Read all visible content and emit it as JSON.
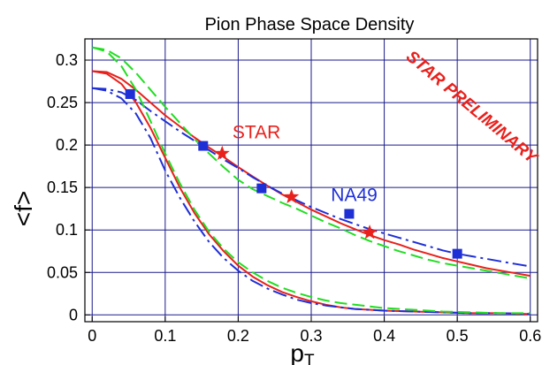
{
  "chart_data": {
    "type": "line",
    "title": "Pion Phase Space Density",
    "xlabel": "p",
    "xlabel_sub": "T",
    "ylabel": "<f>",
    "xlim": [
      -0.01,
      0.61
    ],
    "ylim": [
      -0.008,
      0.325
    ],
    "xticks": [
      0,
      0.1,
      0.2,
      0.3,
      0.4,
      0.5,
      0.6
    ],
    "xtick_labels": [
      "0",
      "0.1",
      "0.2",
      "0.3",
      "0.4",
      "0.5",
      "0.6"
    ],
    "yticks": [
      0,
      0.05,
      0.1,
      0.15,
      0.2,
      0.25,
      0.3
    ],
    "ytick_labels": [
      "0",
      "0.05",
      "0.1",
      "0.15",
      "0.2",
      "0.25",
      "0.3"
    ],
    "grid": true,
    "colors": {
      "red": "#e8211c",
      "blue": "#1f2fd6",
      "green": "#22dd22",
      "grid": "#1a1a8c"
    },
    "series": [
      {
        "color": "red",
        "style": "solid",
        "points": [
          [
            0,
            0.287
          ],
          [
            0.02,
            0.286
          ],
          [
            0.04,
            0.278
          ],
          [
            0.06,
            0.265
          ],
          [
            0.08,
            0.25
          ],
          [
            0.1,
            0.235
          ],
          [
            0.12,
            0.222
          ],
          [
            0.14,
            0.209
          ],
          [
            0.16,
            0.197
          ],
          [
            0.18,
            0.186
          ],
          [
            0.2,
            0.174
          ],
          [
            0.22,
            0.163
          ],
          [
            0.24,
            0.152
          ],
          [
            0.26,
            0.142
          ],
          [
            0.28,
            0.133
          ],
          [
            0.3,
            0.124
          ],
          [
            0.32,
            0.116
          ],
          [
            0.34,
            0.108
          ],
          [
            0.36,
            0.101
          ],
          [
            0.38,
            0.094
          ],
          [
            0.4,
            0.088
          ],
          [
            0.42,
            0.083
          ],
          [
            0.44,
            0.077
          ],
          [
            0.46,
            0.072
          ],
          [
            0.48,
            0.067
          ],
          [
            0.5,
            0.063
          ],
          [
            0.52,
            0.059
          ],
          [
            0.54,
            0.055
          ],
          [
            0.56,
            0.052
          ],
          [
            0.58,
            0.049
          ],
          [
            0.6,
            0.046
          ]
        ]
      },
      {
        "color": "blue",
        "style": "dashdot",
        "points": [
          [
            0,
            0.267
          ],
          [
            0.02,
            0.266
          ],
          [
            0.04,
            0.262
          ],
          [
            0.06,
            0.253
          ],
          [
            0.08,
            0.24
          ],
          [
            0.1,
            0.228
          ],
          [
            0.12,
            0.216
          ],
          [
            0.14,
            0.205
          ],
          [
            0.16,
            0.194
          ],
          [
            0.18,
            0.183
          ],
          [
            0.2,
            0.173
          ],
          [
            0.22,
            0.162
          ],
          [
            0.24,
            0.152
          ],
          [
            0.26,
            0.143
          ],
          [
            0.28,
            0.135
          ],
          [
            0.3,
            0.127
          ],
          [
            0.32,
            0.12
          ],
          [
            0.34,
            0.113
          ],
          [
            0.36,
            0.107
          ],
          [
            0.38,
            0.101
          ],
          [
            0.4,
            0.096
          ],
          [
            0.42,
            0.091
          ],
          [
            0.44,
            0.086
          ],
          [
            0.46,
            0.081
          ],
          [
            0.48,
            0.076
          ],
          [
            0.5,
            0.072
          ],
          [
            0.52,
            0.069
          ],
          [
            0.54,
            0.066
          ],
          [
            0.56,
            0.063
          ],
          [
            0.58,
            0.06
          ],
          [
            0.6,
            0.057
          ]
        ]
      },
      {
        "color": "green",
        "style": "dashed",
        "points": [
          [
            0,
            0.315
          ],
          [
            0.02,
            0.312
          ],
          [
            0.04,
            0.302
          ],
          [
            0.06,
            0.285
          ],
          [
            0.08,
            0.265
          ],
          [
            0.1,
            0.245
          ],
          [
            0.12,
            0.226
          ],
          [
            0.14,
            0.207
          ],
          [
            0.16,
            0.19
          ],
          [
            0.18,
            0.174
          ],
          [
            0.2,
            0.159
          ],
          [
            0.22,
            0.148
          ],
          [
            0.24,
            0.14
          ],
          [
            0.26,
            0.132
          ],
          [
            0.28,
            0.125
          ],
          [
            0.3,
            0.117
          ],
          [
            0.32,
            0.109
          ],
          [
            0.34,
            0.102
          ],
          [
            0.36,
            0.094
          ],
          [
            0.38,
            0.087
          ],
          [
            0.4,
            0.081
          ],
          [
            0.42,
            0.075
          ],
          [
            0.44,
            0.07
          ],
          [
            0.46,
            0.065
          ],
          [
            0.48,
            0.061
          ],
          [
            0.5,
            0.058
          ],
          [
            0.52,
            0.055
          ],
          [
            0.54,
            0.052
          ],
          [
            0.56,
            0.049
          ],
          [
            0.58,
            0.046
          ],
          [
            0.6,
            0.043
          ]
        ]
      },
      {
        "color": "red",
        "style": "solid",
        "points": [
          [
            0,
            0.287
          ],
          [
            0.02,
            0.284
          ],
          [
            0.04,
            0.272
          ],
          [
            0.06,
            0.25
          ],
          [
            0.08,
            0.22
          ],
          [
            0.1,
            0.185
          ],
          [
            0.12,
            0.15
          ],
          [
            0.14,
            0.12
          ],
          [
            0.16,
            0.095
          ],
          [
            0.18,
            0.075
          ],
          [
            0.2,
            0.058
          ],
          [
            0.22,
            0.045
          ],
          [
            0.24,
            0.035
          ],
          [
            0.26,
            0.027
          ],
          [
            0.28,
            0.021
          ],
          [
            0.3,
            0.016
          ],
          [
            0.32,
            0.012
          ],
          [
            0.34,
            0.009
          ],
          [
            0.36,
            0.007
          ],
          [
            0.38,
            0.006
          ],
          [
            0.4,
            0.005
          ],
          [
            0.44,
            0.004
          ],
          [
            0.48,
            0.003
          ],
          [
            0.52,
            0.002
          ],
          [
            0.56,
            0.002
          ],
          [
            0.6,
            0.001
          ]
        ]
      },
      {
        "color": "blue",
        "style": "dashdot",
        "points": [
          [
            0,
            0.267
          ],
          [
            0.02,
            0.264
          ],
          [
            0.04,
            0.255
          ],
          [
            0.06,
            0.237
          ],
          [
            0.08,
            0.208
          ],
          [
            0.1,
            0.17
          ],
          [
            0.12,
            0.138
          ],
          [
            0.14,
            0.11
          ],
          [
            0.16,
            0.086
          ],
          [
            0.18,
            0.067
          ],
          [
            0.2,
            0.052
          ],
          [
            0.22,
            0.04
          ],
          [
            0.24,
            0.031
          ],
          [
            0.26,
            0.024
          ],
          [
            0.28,
            0.018
          ],
          [
            0.3,
            0.014
          ],
          [
            0.32,
            0.011
          ],
          [
            0.34,
            0.009
          ],
          [
            0.36,
            0.007
          ],
          [
            0.4,
            0.005
          ],
          [
            0.44,
            0.004
          ],
          [
            0.48,
            0.003
          ],
          [
            0.52,
            0.002
          ],
          [
            0.56,
            0.002
          ],
          [
            0.6,
            0.001
          ]
        ]
      },
      {
        "color": "green",
        "style": "dashed",
        "points": [
          [
            0,
            0.315
          ],
          [
            0.02,
            0.31
          ],
          [
            0.04,
            0.293
          ],
          [
            0.06,
            0.265
          ],
          [
            0.08,
            0.228
          ],
          [
            0.1,
            0.19
          ],
          [
            0.12,
            0.155
          ],
          [
            0.14,
            0.124
          ],
          [
            0.16,
            0.098
          ],
          [
            0.18,
            0.078
          ],
          [
            0.2,
            0.062
          ],
          [
            0.22,
            0.05
          ],
          [
            0.24,
            0.04
          ],
          [
            0.26,
            0.032
          ],
          [
            0.28,
            0.026
          ],
          [
            0.3,
            0.021
          ],
          [
            0.32,
            0.017
          ],
          [
            0.34,
            0.014
          ],
          [
            0.36,
            0.012
          ],
          [
            0.38,
            0.01
          ],
          [
            0.4,
            0.008
          ],
          [
            0.44,
            0.006
          ],
          [
            0.48,
            0.004
          ],
          [
            0.52,
            0.003
          ],
          [
            0.56,
            0.002
          ],
          [
            0.6,
            0.002
          ]
        ]
      }
    ],
    "markers": [
      {
        "label": "STAR",
        "shape": "star",
        "color": "red",
        "points": [
          [
            0.178,
            0.19
          ],
          [
            0.273,
            0.139
          ],
          [
            0.38,
            0.097
          ]
        ]
      },
      {
        "label": "NA49",
        "shape": "square",
        "color": "blue",
        "points": [
          [
            0.052,
            0.26
          ],
          [
            0.152,
            0.199
          ],
          [
            0.232,
            0.149
          ],
          [
            0.352,
            0.119
          ],
          [
            0.5,
            0.072
          ]
        ]
      }
    ],
    "annotations": [
      {
        "text": "STAR",
        "x": 0.192,
        "y": 0.208,
        "color": "red",
        "class": "ann-star"
      },
      {
        "text": "NA49",
        "x": 0.327,
        "y": 0.134,
        "color": "blue",
        "class": "ann-na49"
      }
    ],
    "watermark": {
      "text": "STAR PRELIMINARY",
      "x": 0.515,
      "y": 0.24,
      "color": "red",
      "rotation_deg": 40
    }
  }
}
